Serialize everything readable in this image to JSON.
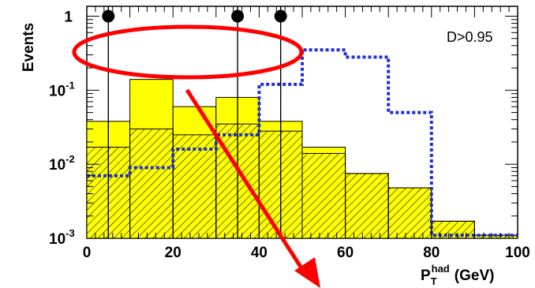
{
  "chart_data": {
    "type": "histogram",
    "scale": {
      "y": "log"
    },
    "xlim": [
      0,
      100
    ],
    "ylim": [
      0.001,
      5
    ],
    "ylabel": "Events",
    "xlabel": {
      "symbol": "P",
      "subscript": "T",
      "superscript": "had",
      "unit": "(GeV)"
    },
    "annotation": "D>0.95",
    "x_ticks": [
      {
        "value": 0,
        "label": "0"
      },
      {
        "value": 20,
        "label": "20"
      },
      {
        "value": 40,
        "label": "40"
      },
      {
        "value": 60,
        "label": "60"
      },
      {
        "value": 80,
        "label": "80"
      },
      {
        "value": 100,
        "label": "100"
      }
    ],
    "y_ticks": [
      {
        "value": 1,
        "label": "1"
      },
      {
        "value": 0.1,
        "label": "10",
        "exp": "-1"
      },
      {
        "value": 0.01,
        "label": "10",
        "exp": "-2"
      },
      {
        "value": 0.001,
        "label": "10",
        "exp": "-3"
      }
    ],
    "bin_edges": [
      0,
      10,
      20,
      30,
      40,
      50,
      60,
      70,
      80,
      90,
      100
    ],
    "series": [
      {
        "style": "filled-yellow",
        "color": "#ffff00",
        "values": [
          0.038,
          0.14,
          0.06,
          0.08,
          0.038,
          0.017,
          0.0075,
          0.0048,
          0.0017,
          0.0011
        ]
      },
      {
        "style": "hatched",
        "color": "#000000",
        "values": [
          0.017,
          0.03,
          0.025,
          0.035,
          0.028,
          0.014,
          0.0075,
          0.0048,
          0.0017,
          0.0011
        ]
      },
      {
        "style": "dotted-line",
        "color": "#1f2ed8",
        "values": [
          0.007,
          0.009,
          0.016,
          0.025,
          0.12,
          0.35,
          0.28,
          0.05,
          0.0011,
          0.0011
        ]
      }
    ],
    "data_points": [
      {
        "x": 5,
        "y": 1
      },
      {
        "x": 35,
        "y": 1
      },
      {
        "x": 45,
        "y": 1
      }
    ],
    "highlight_color": "#ff0000"
  }
}
